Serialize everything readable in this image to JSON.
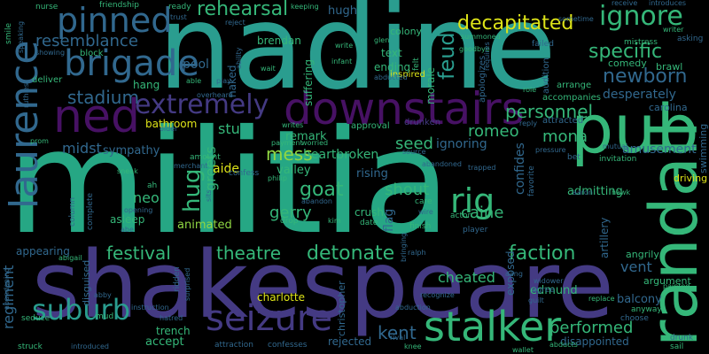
{
  "palette": {
    "teal": "#2a9d8f",
    "green": "#35b779",
    "lime": "#90d743",
    "yellow": "#dde318",
    "blue": "#31688e",
    "indigo": "#443a83",
    "purple": "#471164",
    "deep": "#3b0f70",
    "cyan": "#21918c"
  },
  "words": [
    {
      "text": "militia",
      "color": "#26a784"
    },
    {
      "text": "nadine",
      "color": "#2a9d8f"
    },
    {
      "text": "shakespeare",
      "color": "#443a83"
    },
    {
      "text": "randall",
      "color": "#35b779"
    },
    {
      "text": "pub",
      "color": "#35b779"
    },
    {
      "text": "downstairs",
      "color": "#471164"
    },
    {
      "text": "ned",
      "color": "#471164"
    },
    {
      "text": "laurence",
      "color": "#31688e"
    },
    {
      "text": "pinned",
      "color": "#31688e"
    },
    {
      "text": "brigade",
      "color": "#31688e"
    },
    {
      "text": "seizure",
      "color": "#443a83"
    },
    {
      "text": "stalker",
      "color": "#35b779"
    },
    {
      "text": "extremely",
      "color": "#443a83"
    },
    {
      "text": "rehearsal",
      "color": "#35b779"
    },
    {
      "text": "ignore",
      "color": "#35b779"
    },
    {
      "text": "decapitated",
      "color": "#dde318"
    },
    {
      "text": "feud",
      "color": "#2a9d8f"
    },
    {
      "text": "specific",
      "color": "#35b779"
    },
    {
      "text": "newborn",
      "color": "#31688e"
    },
    {
      "text": "suburb",
      "color": "#2a9d8f"
    },
    {
      "text": "rig",
      "color": "#35b779"
    },
    {
      "text": "hug",
      "color": "#35b779"
    },
    {
      "text": "detonate",
      "color": "#35b779"
    },
    {
      "text": "faction",
      "color": "#35b779"
    },
    {
      "text": "personnel",
      "color": "#35b779"
    },
    {
      "text": "stadium",
      "color": "#31688e"
    },
    {
      "text": "resemblance",
      "color": "#31688e"
    },
    {
      "text": "theatre",
      "color": "#35b779"
    },
    {
      "text": "festival",
      "color": "#35b779"
    },
    {
      "text": "goat",
      "color": "#35b779"
    },
    {
      "text": "mess",
      "color": "#90d743"
    },
    {
      "text": "romeo",
      "color": "#35b779"
    },
    {
      "text": "mona",
      "color": "#35b779"
    },
    {
      "text": "seed",
      "color": "#35b779"
    },
    {
      "text": "shout",
      "color": "#35b779"
    },
    {
      "text": "gerry",
      "color": "#35b779"
    },
    {
      "text": "caine",
      "color": "#35b779"
    },
    {
      "text": "kent",
      "color": "#31688e"
    },
    {
      "text": "performed",
      "color": "#35b779"
    },
    {
      "text": "cheated",
      "color": "#35b779"
    },
    {
      "text": "vent",
      "color": "#31688e"
    },
    {
      "text": "regiment",
      "color": "#31688e"
    },
    {
      "text": "desperately",
      "color": "#31688e"
    },
    {
      "text": "midst",
      "color": "#31688e"
    },
    {
      "text": "stu",
      "color": "#35b779"
    },
    {
      "text": "greets",
      "color": "#35b779"
    },
    {
      "text": "neo",
      "color": "#35b779"
    },
    {
      "text": "flag",
      "color": "#31688e"
    },
    {
      "text": "ignoring",
      "color": "#31688e"
    },
    {
      "text": "amusement",
      "color": "#31688e"
    },
    {
      "text": "remark",
      "color": "#35b779"
    },
    {
      "text": "heartbroken",
      "color": "#35b779"
    },
    {
      "text": "valley",
      "color": "#35b779"
    },
    {
      "text": "confides",
      "color": "#31688e"
    },
    {
      "text": "sympathy",
      "color": "#31688e"
    },
    {
      "text": "aide",
      "color": "#dde318"
    },
    {
      "text": "animated",
      "color": "#90d743"
    },
    {
      "text": "hang",
      "color": "#35b779"
    },
    {
      "text": "pool",
      "color": "#31688e"
    },
    {
      "text": "naked",
      "color": "#31688e"
    },
    {
      "text": "suffering",
      "color": "#35b779"
    },
    {
      "text": "ending",
      "color": "#35b779"
    },
    {
      "text": "text",
      "color": "#35b779"
    },
    {
      "text": "morale",
      "color": "#35b779"
    },
    {
      "text": "hugh",
      "color": "#31688e"
    },
    {
      "text": "brendan",
      "color": "#35b779"
    },
    {
      "text": "rising",
      "color": "#31688e"
    },
    {
      "text": "admitting",
      "color": "#35b779"
    },
    {
      "text": "edmund",
      "color": "#35b779"
    },
    {
      "text": "balcony",
      "color": "#31688e"
    },
    {
      "text": "disappointed",
      "color": "#31688e"
    },
    {
      "text": "accept",
      "color": "#35b779"
    },
    {
      "text": "trench",
      "color": "#35b779"
    },
    {
      "text": "charlotte",
      "color": "#dde318"
    },
    {
      "text": "rejected",
      "color": "#31688e"
    },
    {
      "text": "appearing",
      "color": "#31688e"
    },
    {
      "text": "disguised",
      "color": "#31688e"
    },
    {
      "text": "asleep",
      "color": "#35b779"
    },
    {
      "text": "bathroom",
      "color": "#dde318"
    },
    {
      "text": "crush",
      "color": "#35b779"
    },
    {
      "text": "exposed",
      "color": "#31688e"
    },
    {
      "text": "christopher",
      "color": "#31688e"
    },
    {
      "text": "artillery",
      "color": "#31688e"
    },
    {
      "text": "angrily",
      "color": "#35b779"
    },
    {
      "text": "argument",
      "color": "#35b779"
    },
    {
      "text": "driving",
      "color": "#dde318"
    },
    {
      "text": "comedy",
      "color": "#35b779"
    },
    {
      "text": "brawl",
      "color": "#35b779"
    },
    {
      "text": "carolina",
      "color": "#31688e"
    },
    {
      "text": "swimming",
      "color": "#31688e"
    },
    {
      "text": "colony",
      "color": "#35b779"
    },
    {
      "text": "ready",
      "color": "#35b779"
    },
    {
      "text": "friendship",
      "color": "#35b779"
    },
    {
      "text": "nurse",
      "color": "#35b779"
    },
    {
      "text": "block",
      "color": "#35b779"
    },
    {
      "text": "deliver",
      "color": "#35b779"
    },
    {
      "text": "inspired",
      "color": "#dde318"
    },
    {
      "text": "audition",
      "color": "#31688e"
    },
    {
      "text": "apologizes",
      "color": "#31688e"
    },
    {
      "text": "failed",
      "color": "#31688e"
    },
    {
      "text": "accompanies",
      "color": "#35b779"
    },
    {
      "text": "attracted",
      "color": "#31688e"
    },
    {
      "text": "arrange",
      "color": "#35b779"
    },
    {
      "text": "mistress",
      "color": "#35b779"
    },
    {
      "text": "approval",
      "color": "#35b779"
    },
    {
      "text": "drunken",
      "color": "#443a83"
    },
    {
      "text": "drop",
      "color": "#35b779"
    },
    {
      "text": "date",
      "color": "#35b779"
    },
    {
      "text": "finish",
      "color": "#35b779"
    },
    {
      "text": "actor",
      "color": "#35b779"
    },
    {
      "text": "player",
      "color": "#31688e"
    },
    {
      "text": "care",
      "color": "#35b779"
    },
    {
      "text": "favorite",
      "color": "#31688e"
    },
    {
      "text": "bet",
      "color": "#31688e"
    },
    {
      "text": "invitation",
      "color": "#35b779"
    },
    {
      "text": "column",
      "color": "#31688e"
    },
    {
      "text": "complete",
      "color": "#31688e"
    },
    {
      "text": "opening",
      "color": "#31688e"
    },
    {
      "text": "amount",
      "color": "#35b779"
    },
    {
      "text": "merchant",
      "color": "#31688e"
    },
    {
      "text": "confess",
      "color": "#31688e"
    },
    {
      "text": "ridden",
      "color": "#31688e"
    },
    {
      "text": "surprised",
      "color": "#31688e"
    },
    {
      "text": "instruction",
      "color": "#31688e"
    },
    {
      "text": "mud",
      "color": "#35b779"
    },
    {
      "text": "hatred",
      "color": "#31688e"
    },
    {
      "text": "attraction",
      "color": "#31688e"
    },
    {
      "text": "confesses",
      "color": "#31688e"
    },
    {
      "text": "introduced",
      "color": "#31688e"
    },
    {
      "text": "struck",
      "color": "#35b779"
    },
    {
      "text": "seduce",
      "color": "#35b779"
    },
    {
      "text": "abby",
      "color": "#31688e"
    },
    {
      "text": "abigail",
      "color": "#35b779"
    },
    {
      "text": "ralph",
      "color": "#31688e"
    },
    {
      "text": "bringing",
      "color": "#31688e"
    },
    {
      "text": "recognize",
      "color": "#31688e"
    },
    {
      "text": "abduction",
      "color": "#31688e"
    },
    {
      "text": "rival",
      "color": "#31688e"
    },
    {
      "text": "knee",
      "color": "#35b779"
    },
    {
      "text": "agree",
      "color": "#31688e"
    },
    {
      "text": "widower",
      "color": "#31688e"
    },
    {
      "text": "guilt",
      "color": "#31688e"
    },
    {
      "text": "replace",
      "color": "#35b779"
    },
    {
      "text": "painted",
      "color": "#35b779"
    },
    {
      "text": "anyway",
      "color": "#35b779"
    },
    {
      "text": "choose",
      "color": "#31688e"
    },
    {
      "text": "drunk",
      "color": "#31688e"
    },
    {
      "text": "abducts",
      "color": "#35b779"
    },
    {
      "text": "sail",
      "color": "#35b779"
    },
    {
      "text": "receive",
      "color": "#31688e"
    },
    {
      "text": "introduces",
      "color": "#31688e"
    },
    {
      "text": "writer",
      "color": "#35b779"
    },
    {
      "text": "asking",
      "color": "#31688e"
    },
    {
      "text": "sometime",
      "color": "#31688e"
    },
    {
      "text": "summoned",
      "color": "#35b779"
    },
    {
      "text": "goodbye",
      "color": "#35b779"
    },
    {
      "text": "requires",
      "color": "#31688e"
    },
    {
      "text": "role",
      "color": "#35b779"
    },
    {
      "text": "reply",
      "color": "#31688e"
    },
    {
      "text": "pressure",
      "color": "#31688e"
    },
    {
      "text": "source",
      "color": "#31688e"
    },
    {
      "text": "felt",
      "color": "#35b779"
    },
    {
      "text": "glen",
      "color": "#35b779"
    },
    {
      "text": "write",
      "color": "#35b779"
    },
    {
      "text": "infant",
      "color": "#35b779"
    },
    {
      "text": "abducted",
      "color": "#31688e"
    },
    {
      "text": "keeping",
      "color": "#35b779"
    },
    {
      "text": "trust",
      "color": "#31688e"
    },
    {
      "text": "reject",
      "color": "#31688e"
    },
    {
      "text": "showing",
      "color": "#31688e"
    },
    {
      "text": "smile",
      "color": "#35b779"
    },
    {
      "text": "speaking",
      "color": "#31688e"
    },
    {
      "text": "wait",
      "color": "#35b779"
    },
    {
      "text": "play",
      "color": "#31688e"
    },
    {
      "text": "able",
      "color": "#35b779"
    },
    {
      "text": "ability",
      "color": "#31688e"
    },
    {
      "text": "overheard",
      "color": "#31688e"
    },
    {
      "text": "older",
      "color": "#31688e"
    },
    {
      "text": "ruthless",
      "color": "#31688e"
    },
    {
      "text": "prom",
      "color": "#35b779"
    },
    {
      "text": "writes",
      "color": "#35b779"
    },
    {
      "text": "worried",
      "color": "#35b779"
    },
    {
      "text": "payment",
      "color": "#35b779"
    },
    {
      "text": "philip",
      "color": "#35b779"
    },
    {
      "text": "sneak",
      "color": "#35b779"
    },
    {
      "text": "ah",
      "color": "#35b779"
    },
    {
      "text": "abe",
      "color": "#31688e"
    },
    {
      "text": "sits",
      "color": "#31688e"
    },
    {
      "text": "abandon",
      "color": "#31688e"
    },
    {
      "text": "abandoned",
      "color": "#31688e"
    },
    {
      "text": "trapped",
      "color": "#31688e"
    },
    {
      "text": "kim",
      "color": "#35b779"
    },
    {
      "text": "wire",
      "color": "#31688e"
    },
    {
      "text": "mutual",
      "color": "#31688e"
    },
    {
      "text": "aaron",
      "color": "#31688e"
    },
    {
      "text": "hawk",
      "color": "#35b779"
    },
    {
      "text": "aang",
      "color": "#31688e"
    },
    {
      "text": "abandoning",
      "color": "#31688e"
    },
    {
      "text": "wallet",
      "color": "#35b779"
    }
  ]
}
